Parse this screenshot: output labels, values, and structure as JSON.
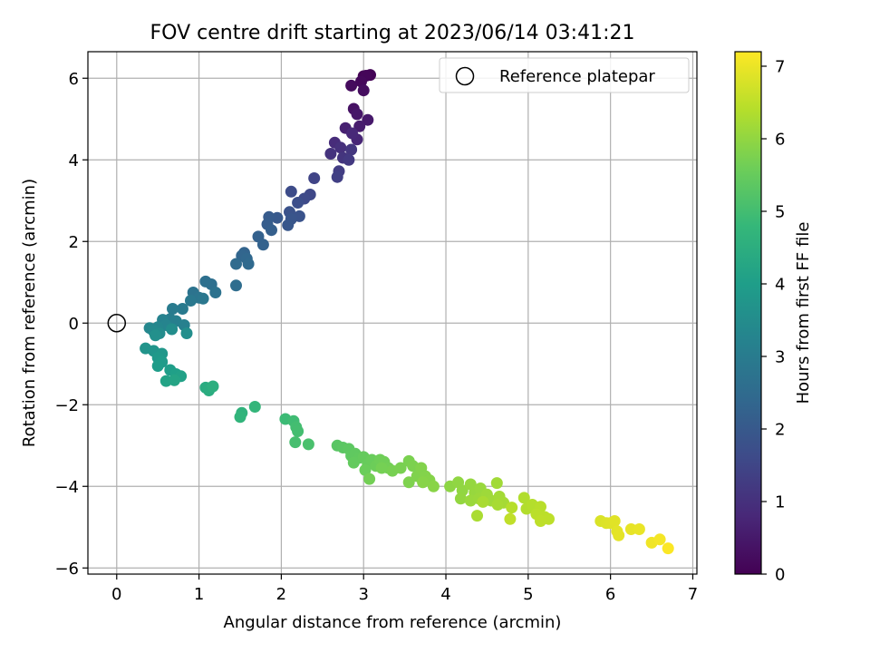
{
  "chart_data": {
    "type": "scatter",
    "title": "FOV centre drift starting at 2023/06/14 03:41:21",
    "xlabel": "Angular distance from reference (arcmin)",
    "ylabel": "Rotation from reference (arcmin)",
    "xlim": [
      -0.35,
      7.05
    ],
    "ylim": [
      -6.15,
      6.65
    ],
    "xticks": [
      0,
      1,
      2,
      3,
      4,
      5,
      6,
      7
    ],
    "yticks": [
      -6,
      -4,
      -2,
      0,
      2,
      4,
      6
    ],
    "xtick_labels": [
      "0",
      "1",
      "2",
      "3",
      "4",
      "5",
      "6",
      "7"
    ],
    "ytick_labels": [
      "−6",
      "−4",
      "−2",
      "0",
      "2",
      "4",
      "6"
    ],
    "grid": true,
    "legend": {
      "position": "top-right",
      "entries": [
        "Reference platepar"
      ]
    },
    "reference_point": {
      "x": 0,
      "y": 0,
      "label": "Reference platepar"
    },
    "colorbar": {
      "label": "Hours from first FF file",
      "min": 0,
      "max": 7.2,
      "ticks": [
        0,
        1,
        2,
        3,
        4,
        5,
        6,
        7
      ],
      "tick_labels": [
        "0",
        "1",
        "2",
        "3",
        "4",
        "5",
        "6",
        "7"
      ],
      "colormap": "viridis"
    },
    "series": [
      {
        "values": [
          [
            3.0,
            6.05,
            0.0
          ],
          [
            3.08,
            6.08,
            0.05
          ],
          [
            3.03,
            6.06,
            0.1
          ],
          [
            2.97,
            5.92,
            0.15
          ],
          [
            2.85,
            5.82,
            0.2
          ],
          [
            3.0,
            5.7,
            0.25
          ],
          [
            2.88,
            5.25,
            0.35
          ],
          [
            2.92,
            5.12,
            0.45
          ],
          [
            3.05,
            4.98,
            0.5
          ],
          [
            2.95,
            4.82,
            0.55
          ],
          [
            2.78,
            4.78,
            0.65
          ],
          [
            2.92,
            4.5,
            0.75
          ],
          [
            2.86,
            4.65,
            0.8
          ],
          [
            2.65,
            4.42,
            0.9
          ],
          [
            2.72,
            4.3,
            1.0
          ],
          [
            2.6,
            4.15,
            1.05
          ],
          [
            2.75,
            4.05,
            1.1
          ],
          [
            2.85,
            4.25,
            1.15
          ],
          [
            2.82,
            4.0,
            1.2
          ],
          [
            2.7,
            3.72,
            1.3
          ],
          [
            2.68,
            3.58,
            1.35
          ],
          [
            2.4,
            3.55,
            1.45
          ],
          [
            2.35,
            3.15,
            1.55
          ],
          [
            2.28,
            3.05,
            1.6
          ],
          [
            2.12,
            3.22,
            1.65
          ],
          [
            2.2,
            2.95,
            1.7
          ],
          [
            2.1,
            2.72,
            1.8
          ],
          [
            2.22,
            2.62,
            1.85
          ],
          [
            2.12,
            2.55,
            1.9
          ],
          [
            2.08,
            2.4,
            1.95
          ],
          [
            1.95,
            2.58,
            2.0
          ],
          [
            1.85,
            2.6,
            2.05
          ],
          [
            1.83,
            2.42,
            2.1
          ],
          [
            1.88,
            2.28,
            2.15
          ],
          [
            1.72,
            2.12,
            2.2
          ],
          [
            1.78,
            1.92,
            2.25
          ],
          [
            1.55,
            1.72,
            2.3
          ],
          [
            1.52,
            1.65,
            2.35
          ],
          [
            1.58,
            1.58,
            2.4
          ],
          [
            1.6,
            1.45,
            2.45
          ],
          [
            1.45,
            1.45,
            2.5
          ],
          [
            1.45,
            0.92,
            2.55
          ],
          [
            1.15,
            0.95,
            2.6
          ],
          [
            1.08,
            1.02,
            2.65
          ],
          [
            1.2,
            0.75,
            2.7
          ],
          [
            0.93,
            0.75,
            2.75
          ],
          [
            1.0,
            0.62,
            2.8
          ],
          [
            1.05,
            0.6,
            2.85
          ],
          [
            0.9,
            0.55,
            2.9
          ],
          [
            0.8,
            0.35,
            2.95
          ],
          [
            0.68,
            0.35,
            3.0
          ],
          [
            0.65,
            0.1,
            3.05
          ],
          [
            0.72,
            0.05,
            3.1
          ],
          [
            0.82,
            -0.05,
            3.15
          ],
          [
            0.56,
            0.08,
            3.2
          ],
          [
            0.6,
            -0.05,
            3.25
          ],
          [
            0.5,
            -0.1,
            3.3
          ],
          [
            0.4,
            -0.12,
            3.35
          ],
          [
            0.45,
            -0.2,
            3.4
          ],
          [
            0.52,
            -0.25,
            3.45
          ],
          [
            0.67,
            -0.15,
            3.5
          ],
          [
            0.85,
            -0.25,
            3.55
          ],
          [
            0.47,
            -0.3,
            3.6
          ],
          [
            0.35,
            -0.62,
            3.7
          ],
          [
            0.45,
            -0.68,
            3.75
          ],
          [
            0.55,
            -0.75,
            3.8
          ],
          [
            0.5,
            -0.85,
            3.85
          ],
          [
            0.55,
            -0.95,
            3.9
          ],
          [
            0.5,
            -1.05,
            3.95
          ],
          [
            0.65,
            -1.15,
            4.0
          ],
          [
            0.72,
            -1.25,
            4.05
          ],
          [
            0.78,
            -1.3,
            4.1
          ],
          [
            0.6,
            -1.42,
            4.15
          ],
          [
            0.7,
            -1.4,
            4.2
          ],
          [
            1.08,
            -1.58,
            4.4
          ],
          [
            1.12,
            -1.65,
            4.45
          ],
          [
            1.17,
            -1.55,
            4.5
          ],
          [
            1.52,
            -2.2,
            4.65
          ],
          [
            1.5,
            -2.3,
            4.7
          ],
          [
            1.68,
            -2.05,
            4.75
          ],
          [
            2.05,
            -2.35,
            4.9
          ],
          [
            2.15,
            -2.4,
            4.95
          ],
          [
            2.18,
            -2.55,
            5.0
          ],
          [
            2.2,
            -2.65,
            5.02
          ],
          [
            2.17,
            -2.92,
            5.05
          ],
          [
            2.33,
            -2.97,
            5.1
          ],
          [
            2.68,
            -3.0,
            5.3
          ],
          [
            2.75,
            -3.05,
            5.33
          ],
          [
            2.82,
            -3.08,
            5.36
          ],
          [
            2.85,
            -3.25,
            5.38
          ],
          [
            2.9,
            -3.2,
            5.4
          ],
          [
            2.95,
            -3.3,
            5.42
          ],
          [
            2.88,
            -3.42,
            5.45
          ],
          [
            3.0,
            -3.28,
            5.47
          ],
          [
            3.05,
            -3.45,
            5.5
          ],
          [
            3.1,
            -3.35,
            5.52
          ],
          [
            3.02,
            -3.6,
            5.55
          ],
          [
            3.15,
            -3.5,
            5.57
          ],
          [
            3.2,
            -3.35,
            5.6
          ],
          [
            3.25,
            -3.4,
            5.62
          ],
          [
            3.3,
            -3.55,
            5.64
          ],
          [
            3.07,
            -3.82,
            5.66
          ],
          [
            3.22,
            -3.55,
            5.68
          ],
          [
            3.35,
            -3.62,
            5.7
          ],
          [
            3.45,
            -3.55,
            5.72
          ],
          [
            3.55,
            -3.38,
            5.74
          ],
          [
            3.6,
            -3.5,
            5.76
          ],
          [
            3.55,
            -3.9,
            5.78
          ],
          [
            3.65,
            -3.75,
            5.8
          ],
          [
            3.7,
            -3.55,
            5.82
          ],
          [
            3.75,
            -3.75,
            5.84
          ],
          [
            3.8,
            -3.85,
            5.86
          ],
          [
            3.72,
            -3.9,
            5.88
          ],
          [
            3.85,
            -4.0,
            5.9
          ],
          [
            4.05,
            -4.0,
            5.95
          ],
          [
            4.15,
            -3.9,
            5.98
          ],
          [
            4.2,
            -4.1,
            6.0
          ],
          [
            4.18,
            -4.3,
            6.02
          ],
          [
            4.3,
            -3.95,
            6.04
          ],
          [
            4.35,
            -4.15,
            6.06
          ],
          [
            4.42,
            -4.05,
            6.08
          ],
          [
            4.3,
            -4.35,
            6.1
          ],
          [
            4.4,
            -4.3,
            6.12
          ],
          [
            4.5,
            -4.2,
            6.14
          ],
          [
            4.55,
            -4.35,
            6.16
          ],
          [
            4.62,
            -3.92,
            6.18
          ],
          [
            4.65,
            -4.25,
            6.2
          ],
          [
            4.7,
            -4.4,
            6.22
          ],
          [
            4.63,
            -4.45,
            6.24
          ],
          [
            4.45,
            -4.38,
            6.26
          ],
          [
            4.38,
            -4.72,
            6.28
          ],
          [
            4.95,
            -4.28,
            6.35
          ],
          [
            4.98,
            -4.55,
            6.37
          ],
          [
            5.05,
            -4.45,
            6.39
          ],
          [
            4.8,
            -4.52,
            6.41
          ],
          [
            5.15,
            -4.5,
            6.43
          ],
          [
            5.1,
            -4.68,
            6.45
          ],
          [
            5.2,
            -4.75,
            6.47
          ],
          [
            5.25,
            -4.8,
            6.49
          ],
          [
            5.15,
            -4.85,
            6.5
          ],
          [
            4.78,
            -4.8,
            6.52
          ],
          [
            5.88,
            -4.85,
            6.8
          ],
          [
            5.95,
            -4.9,
            6.83
          ],
          [
            6.0,
            -4.9,
            6.86
          ],
          [
            6.05,
            -4.85,
            6.88
          ],
          [
            6.08,
            -5.1,
            6.9
          ],
          [
            6.1,
            -5.2,
            6.92
          ],
          [
            6.25,
            -5.05,
            6.95
          ],
          [
            6.35,
            -5.05,
            6.98
          ],
          [
            6.5,
            -5.38,
            7.05
          ],
          [
            6.6,
            -5.3,
            7.1
          ],
          [
            6.7,
            -5.52,
            7.18
          ]
        ]
      }
    ]
  }
}
